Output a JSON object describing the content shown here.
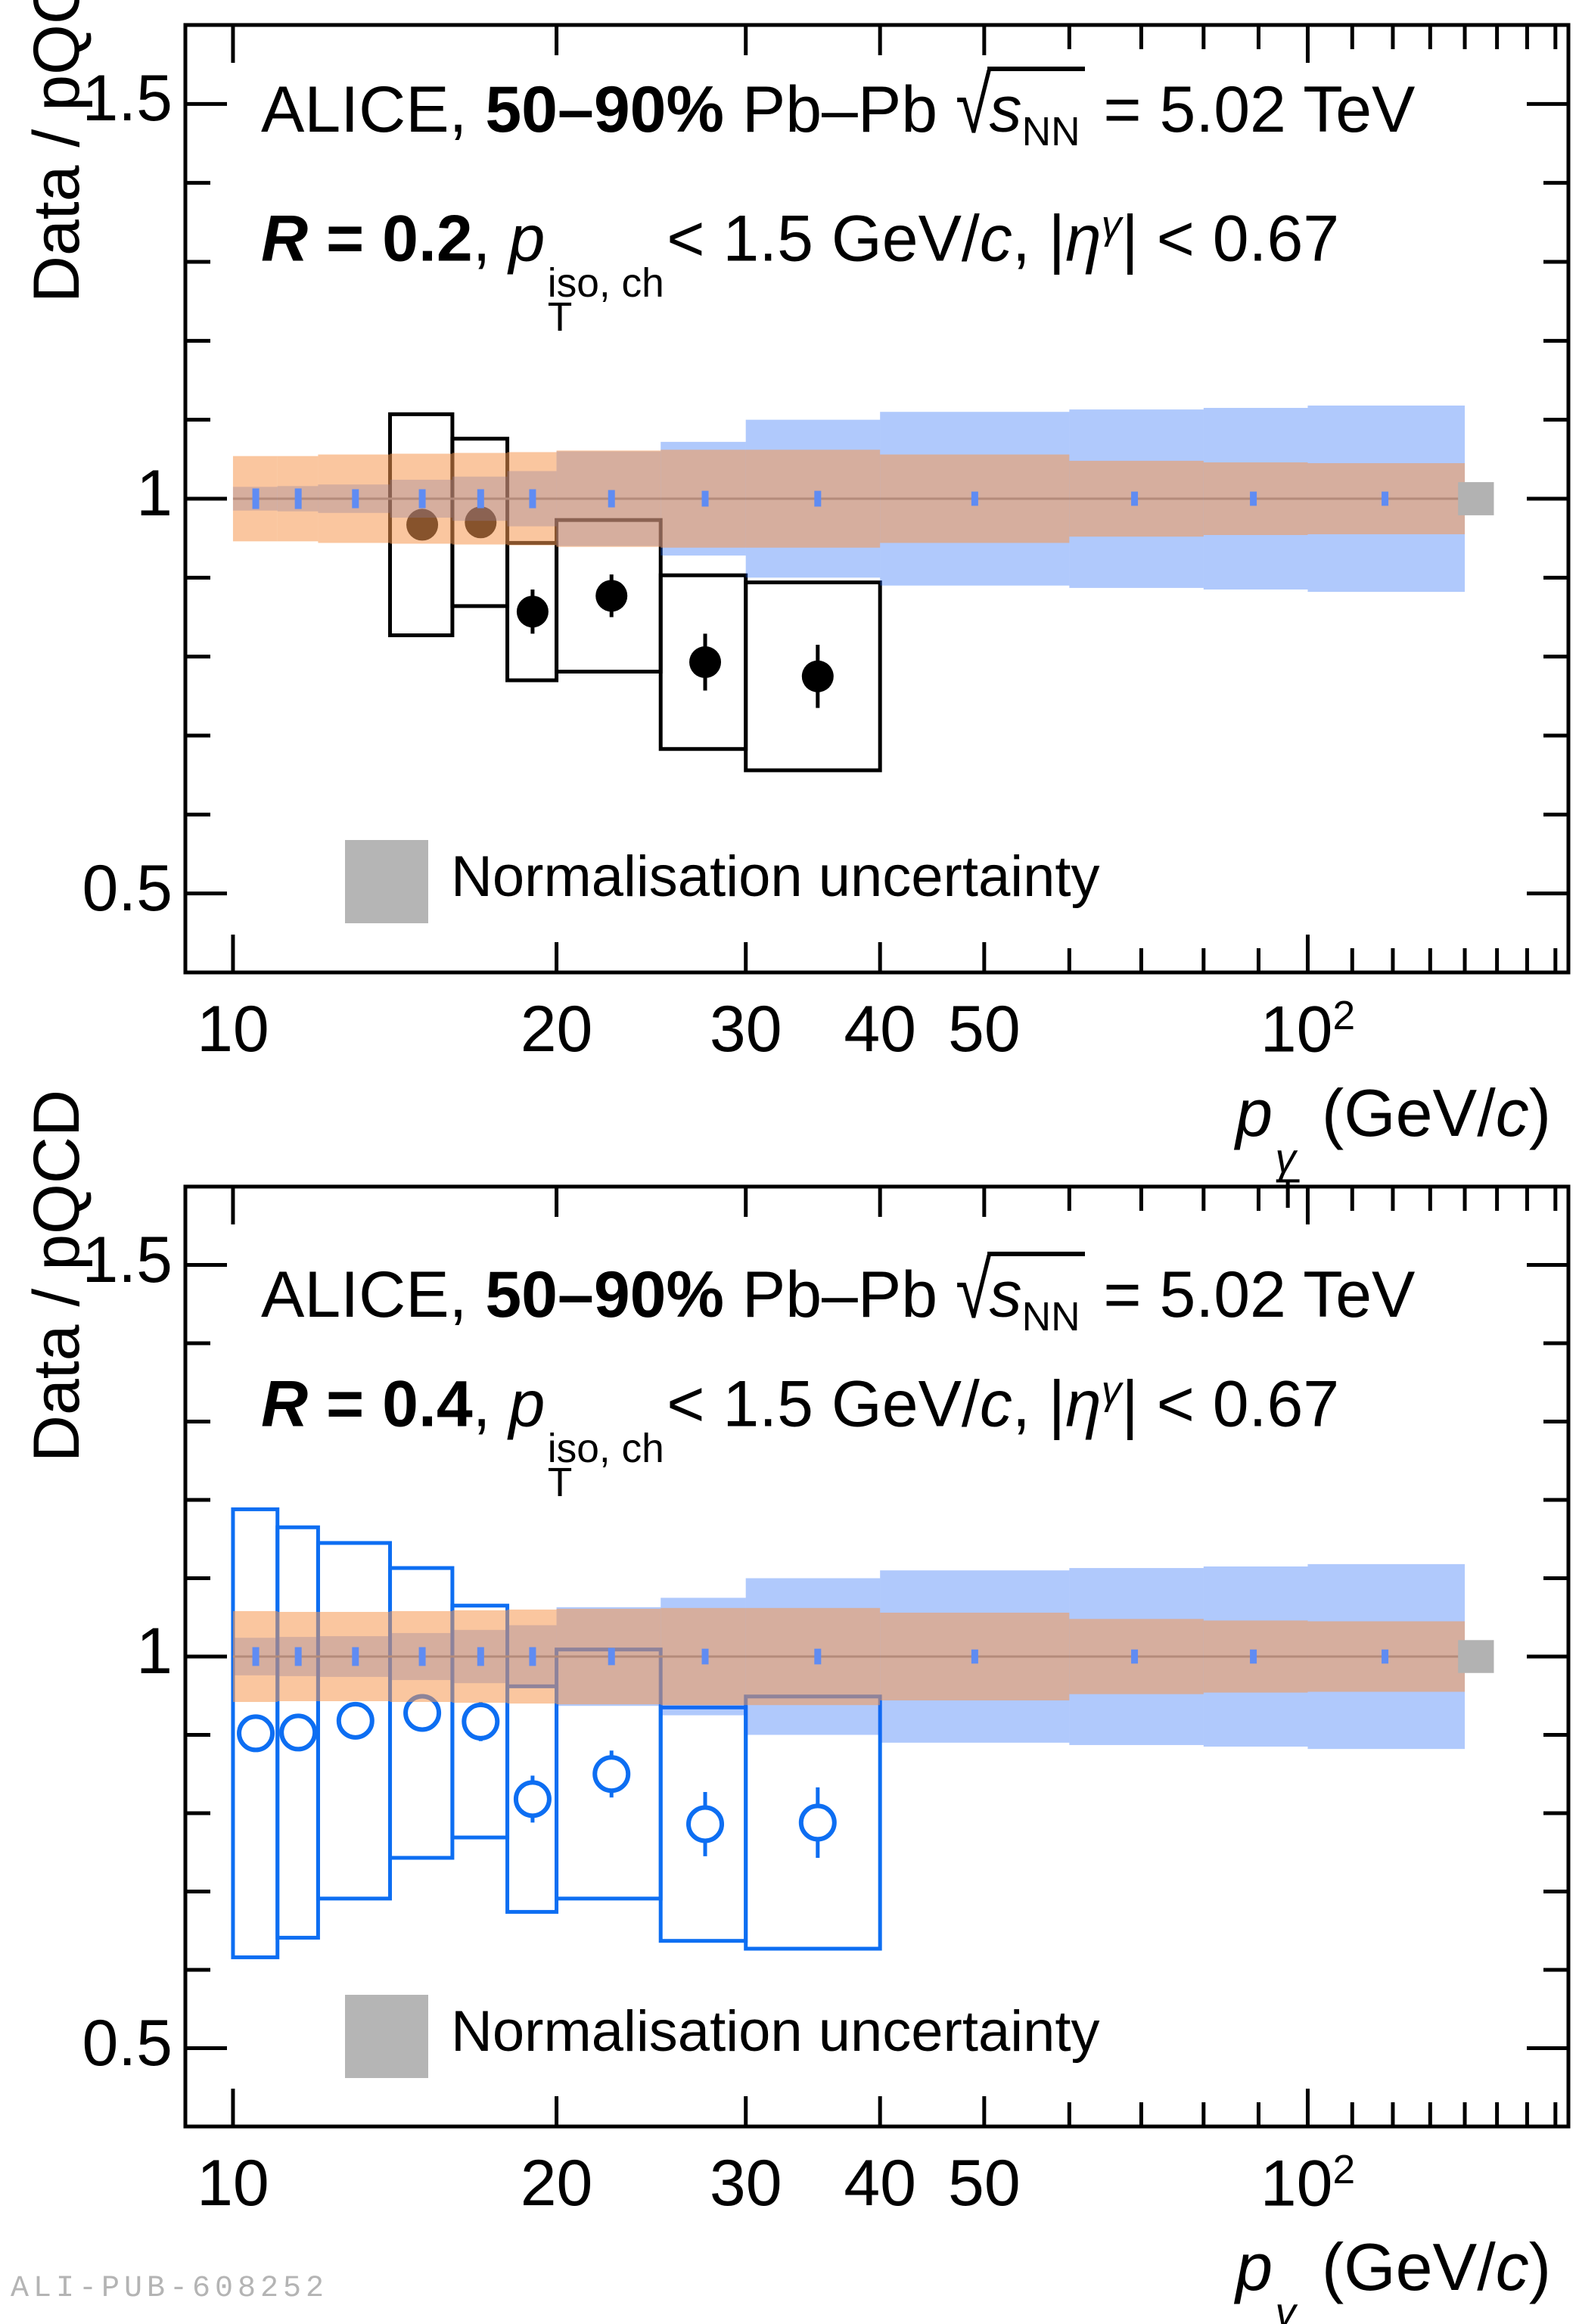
{
  "page": {
    "background": "#ffffff",
    "watermark": "ALI-PUB-608252"
  },
  "colors": {
    "frame": "#000000",
    "scale_band_orange": "rgba(246,152,80,0.55)",
    "pdf_band_blue": "rgba(30,100,245,0.35)",
    "band_center_line": "#8a8a8a",
    "stat_tick_blue": "#5f8cf3",
    "data_black": "#000000",
    "data_blue": "#0d6ef2",
    "norm_square_gray": "#b2b2b2",
    "legend_square_gray": "#b5b5b5",
    "watermark_gray": "#b4b4b4"
  },
  "chart_data": [
    {
      "id": "R02",
      "type": "scatter",
      "title_line1": [
        {
          "t": "ALICE, "
        },
        {
          "t": "50–90%",
          "s": "b"
        },
        {
          "t": " Pb–Pb "
        },
        {
          "sqrt": [
            {
              "t": "s",
              "s": "i"
            },
            {
              "t": "NN",
              "s": "sub"
            }
          ]
        },
        {
          "t": " = 5.02 TeV"
        }
      ],
      "title_line2": [
        {
          "t": "R",
          "s": "bi"
        },
        {
          "t": " = 0.2",
          "s": "b"
        },
        {
          "t": ", "
        },
        {
          "t": "p",
          "s": "i"
        },
        {
          "stack": {
            "up": "iso, ch",
            "dn": "T"
          }
        },
        {
          "t": "< 1.5 GeV/"
        },
        {
          "t": "c",
          "s": "i"
        },
        {
          "t": ", |"
        },
        {
          "t": "η",
          "s": "i"
        },
        {
          "t": "γ",
          "s": "isup"
        },
        {
          "t": "| < 0.67"
        }
      ],
      "ylabel": "Data / pQCD",
      "xlabel": [
        {
          "t": "p",
          "s": "i"
        },
        {
          "stack": {
            "up": "γ",
            "dn": "T",
            "ui": true
          }
        },
        {
          "t": " (GeV/"
        },
        {
          "t": "c",
          "s": "i"
        },
        {
          "t": ")"
        }
      ],
      "x_scale": "log",
      "xlim": [
        9.03,
        174.8
      ],
      "ylim": [
        0.4,
        1.6
      ],
      "x_ticks_labeled": [
        {
          "pt": 10,
          "label": [
            {
              "t": "10"
            }
          ]
        },
        {
          "pt": 20,
          "label": [
            {
              "t": "20"
            }
          ]
        },
        {
          "pt": 30,
          "label": [
            {
              "t": "30"
            }
          ]
        },
        {
          "pt": 40,
          "label": [
            {
              "t": "40"
            }
          ]
        },
        {
          "pt": 50,
          "label": [
            {
              "t": "50"
            }
          ]
        },
        {
          "pt": 100,
          "label": [
            {
              "t": "10"
            },
            {
              "t": "2",
              "s": "sup"
            }
          ]
        }
      ],
      "x_ticks_minor": [
        60,
        70,
        80,
        90,
        110,
        120,
        130,
        140,
        150,
        160,
        170
      ],
      "y_ticks_labeled": [
        {
          "v": 0.5,
          "label": [
            {
              "t": "0.5"
            }
          ]
        },
        {
          "v": 1,
          "label": [
            {
              "t": "1"
            }
          ]
        },
        {
          "v": 1.5,
          "label": [
            {
              "t": "1.5"
            }
          ]
        }
      ],
      "y_ticks_minor": [
        0.6,
        0.7,
        0.8,
        0.9,
        1.1,
        1.2,
        1.3,
        1.4
      ],
      "theory": {
        "bin_edges": [
          10,
          11,
          12,
          14,
          16,
          18,
          20,
          25,
          30,
          40,
          60,
          80,
          100,
          140
        ],
        "centers": [
          10.5,
          11.5,
          13,
          15,
          17,
          19,
          22.5,
          27.5,
          35,
          49,
          69,
          89,
          118
        ],
        "central_value": 1.0,
        "scale_unc": [
          0.054,
          0.054,
          0.056,
          0.057,
          0.058,
          0.059,
          0.061,
          0.062,
          0.062,
          0.056,
          0.048,
          0.046,
          0.045
        ],
        "pdf_unc": [
          0.015,
          0.016,
          0.018,
          0.024,
          0.028,
          0.035,
          0.06,
          0.072,
          0.1,
          0.11,
          0.113,
          0.115,
          0.118
        ],
        "stat_unc": [
          0.013,
          0.013,
          0.012,
          0.012,
          0.012,
          0.012,
          0.011,
          0.01,
          0.01,
          0.009,
          0.009,
          0.009,
          0.009
        ]
      },
      "data_points": [
        {
          "x": 15,
          "xlo": 14,
          "xhi": 16,
          "y": 0.967,
          "stat": 0.018,
          "sys": 0.14
        },
        {
          "x": 17,
          "xlo": 16,
          "xhi": 18,
          "y": 0.97,
          "stat": 0.018,
          "sys": 0.106
        },
        {
          "x": 19,
          "xlo": 18,
          "xhi": 20,
          "y": 0.857,
          "stat": 0.028,
          "sys": 0.087
        },
        {
          "x": 22.5,
          "xlo": 20,
          "xhi": 25,
          "y": 0.877,
          "stat": 0.027,
          "sys": 0.096
        },
        {
          "x": 27.5,
          "xlo": 25,
          "xhi": 30,
          "y": 0.793,
          "stat": 0.036,
          "sys": 0.11
        },
        {
          "x": 35,
          "xlo": 30,
          "xhi": 40,
          "y": 0.775,
          "stat": 0.04,
          "sys": 0.119
        }
      ],
      "marker": "filled-circle",
      "norm_box": {
        "xlo": 138,
        "xhi": 149,
        "y": 1.0,
        "half_height": 0.021
      },
      "legend_label": "Normalisation uncertainty"
    },
    {
      "id": "R04",
      "type": "scatter",
      "title_line1": [
        {
          "t": "ALICE, "
        },
        {
          "t": "50–90%",
          "s": "b"
        },
        {
          "t": " Pb–Pb "
        },
        {
          "sqrt": [
            {
              "t": "s",
              "s": "i"
            },
            {
              "t": "NN",
              "s": "sub"
            }
          ]
        },
        {
          "t": " = 5.02 TeV"
        }
      ],
      "title_line2": [
        {
          "t": "R",
          "s": "bi"
        },
        {
          "t": " = 0.4",
          "s": "b"
        },
        {
          "t": ", "
        },
        {
          "t": "p",
          "s": "i"
        },
        {
          "stack": {
            "up": "iso, ch",
            "dn": "T"
          }
        },
        {
          "t": "< 1.5 GeV/"
        },
        {
          "t": "c",
          "s": "i"
        },
        {
          "t": ", |"
        },
        {
          "t": "η",
          "s": "i"
        },
        {
          "t": "γ",
          "s": "isup"
        },
        {
          "t": "| < 0.67"
        }
      ],
      "ylabel": "Data / pQCD",
      "xlabel": [
        {
          "t": "p",
          "s": "i"
        },
        {
          "stack": {
            "up": "γ",
            "dn": "T",
            "ui": true
          }
        },
        {
          "t": " (GeV/"
        },
        {
          "t": "c",
          "s": "i"
        },
        {
          "t": ")"
        }
      ],
      "x_scale": "log",
      "xlim": [
        9.03,
        174.8
      ],
      "ylim": [
        0.4,
        1.6
      ],
      "x_ticks_labeled": [
        {
          "pt": 10,
          "label": [
            {
              "t": "10"
            }
          ]
        },
        {
          "pt": 20,
          "label": [
            {
              "t": "20"
            }
          ]
        },
        {
          "pt": 30,
          "label": [
            {
              "t": "30"
            }
          ]
        },
        {
          "pt": 40,
          "label": [
            {
              "t": "40"
            }
          ]
        },
        {
          "pt": 50,
          "label": [
            {
              "t": "50"
            }
          ]
        },
        {
          "pt": 100,
          "label": [
            {
              "t": "10"
            },
            {
              "t": "2",
              "s": "sup"
            }
          ]
        }
      ],
      "x_ticks_minor": [
        60,
        70,
        80,
        90,
        110,
        120,
        130,
        140,
        150,
        160,
        170
      ],
      "y_ticks_labeled": [
        {
          "v": 0.5,
          "label": [
            {
              "t": "0.5"
            }
          ]
        },
        {
          "v": 1,
          "label": [
            {
              "t": "1"
            }
          ]
        },
        {
          "v": 1.5,
          "label": [
            {
              "t": "1.5"
            }
          ]
        }
      ],
      "y_ticks_minor": [
        0.6,
        0.7,
        0.8,
        0.9,
        1.1,
        1.2,
        1.3,
        1.4
      ],
      "theory": {
        "bin_edges": [
          10,
          11,
          12,
          14,
          16,
          18,
          20,
          25,
          30,
          40,
          60,
          80,
          100,
          140
        ],
        "centers": [
          10.5,
          11.5,
          13,
          15,
          17,
          19,
          22.5,
          27.5,
          35,
          49,
          69,
          89,
          118
        ],
        "central_value": 1.0,
        "scale_unc": [
          0.058,
          0.057,
          0.057,
          0.058,
          0.059,
          0.06,
          0.061,
          0.062,
          0.062,
          0.056,
          0.048,
          0.046,
          0.045
        ],
        "pdf_unc": [
          0.024,
          0.025,
          0.026,
          0.03,
          0.034,
          0.04,
          0.063,
          0.075,
          0.1,
          0.11,
          0.113,
          0.115,
          0.118
        ],
        "stat_unc": [
          0.012,
          0.012,
          0.012,
          0.012,
          0.012,
          0.012,
          0.011,
          0.01,
          0.01,
          0.009,
          0.009,
          0.009,
          0.009
        ]
      },
      "data_points": [
        {
          "x": 10.5,
          "xlo": 10,
          "xhi": 11,
          "y": 0.902,
          "stat": 0.008,
          "sys": 0.286
        },
        {
          "x": 11.5,
          "xlo": 11,
          "xhi": 12,
          "y": 0.903,
          "stat": 0.008,
          "sys": 0.262
        },
        {
          "x": 13,
          "xlo": 12,
          "xhi": 14,
          "y": 0.918,
          "stat": 0.009,
          "sys": 0.227
        },
        {
          "x": 15,
          "xlo": 14,
          "xhi": 16,
          "y": 0.928,
          "stat": 0.015,
          "sys": 0.185
        },
        {
          "x": 17,
          "xlo": 16,
          "xhi": 18,
          "y": 0.917,
          "stat": 0.025,
          "sys": 0.148
        },
        {
          "x": 19,
          "xlo": 18,
          "xhi": 20,
          "y": 0.818,
          "stat": 0.03,
          "sys": 0.144
        },
        {
          "x": 22.5,
          "xlo": 20,
          "xhi": 25,
          "y": 0.85,
          "stat": 0.03,
          "sys": 0.159
        },
        {
          "x": 27.5,
          "xlo": 25,
          "xhi": 30,
          "y": 0.786,
          "stat": 0.041,
          "sys": 0.149
        },
        {
          "x": 35,
          "xlo": 30,
          "xhi": 40,
          "y": 0.788,
          "stat": 0.045,
          "sys": 0.161
        }
      ],
      "marker": "open-circle",
      "norm_box": {
        "xlo": 138,
        "xhi": 149,
        "y": 1.0,
        "half_height": 0.021
      },
      "legend_label": "Normalisation uncertainty"
    }
  ]
}
